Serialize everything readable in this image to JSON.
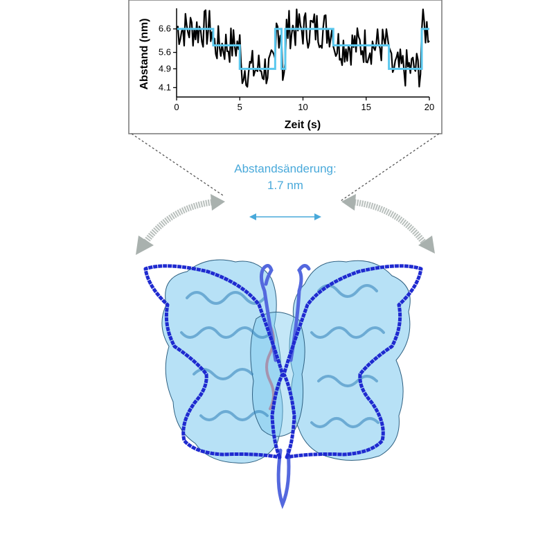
{
  "annotation": {
    "line1": "Abstandsänderung:",
    "line2": "1.7 nm"
  },
  "colors": {
    "fit_trace": "#5bc8ee",
    "raw_trace": "#000000",
    "annotation": "#49a9da",
    "butterfly_outline": "#1f2ad0",
    "protein_surface": "#6ec3ea",
    "arrows": "#a9b1ae"
  },
  "chart_data": {
    "type": "line",
    "xlabel": "Zeit (s)",
    "ylabel": "Abstand (nm)",
    "xlim": [
      0,
      20
    ],
    "ylim": [
      3.7,
      7.3
    ],
    "xticks": [
      0,
      5,
      10,
      15,
      20
    ],
    "yticks": [
      4.1,
      4.9,
      5.6,
      6.6
    ],
    "xtick_labels": [
      "0",
      "5",
      "10",
      "15",
      "20"
    ],
    "ytick_labels": [
      "4.1",
      "4.9",
      "5.6",
      "6.6"
    ],
    "grid": false,
    "series": [
      {
        "role": "fit",
        "x": [
          0,
          2.9,
          2.9,
          5.0,
          5.0,
          7.8,
          7.8,
          8.3,
          8.3,
          8.6,
          8.6,
          12.4,
          12.4,
          12.9,
          12.9,
          16.8,
          16.8,
          19.4,
          19.4,
          20
        ],
        "y": [
          6.6,
          6.6,
          5.9,
          5.9,
          4.9,
          4.9,
          6.6,
          6.6,
          4.9,
          4.9,
          6.6,
          6.6,
          5.9,
          5.9,
          5.9,
          5.9,
          4.9,
          4.9,
          6.6,
          6.6
        ]
      }
    ]
  }
}
